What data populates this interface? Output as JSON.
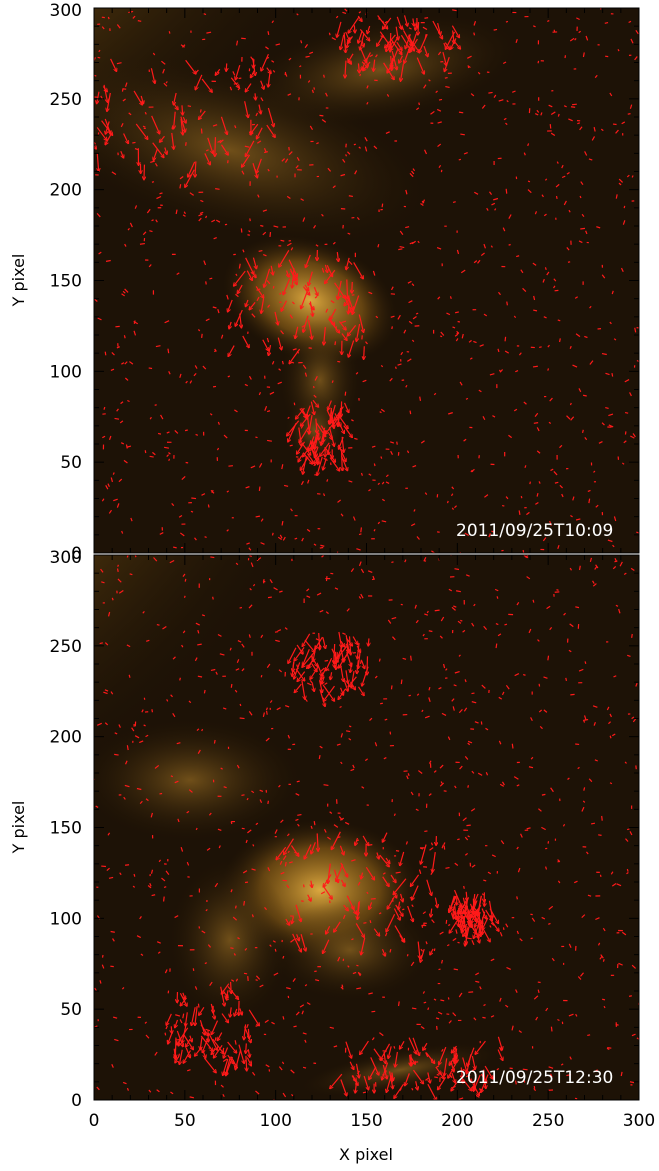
{
  "chart_data": [
    {
      "type": "image",
      "panel": "top",
      "timestamp": "2011/09/25T10:09",
      "xlabel": "",
      "ylabel": "Y pixel",
      "xlim": [
        0,
        300
      ],
      "ylim": [
        0,
        300
      ],
      "xticks": [],
      "yticks": [
        "0",
        "50",
        "100",
        "150",
        "200",
        "250",
        "300"
      ],
      "vector_color": "#ff1a1a",
      "background_colors": [
        "#1a0f04",
        "#c89a2c",
        "#ffffff"
      ]
    },
    {
      "type": "image",
      "panel": "bottom",
      "timestamp": "2011/09/25T12:30",
      "xlabel": "X pixel",
      "ylabel": "Y pixel",
      "xlim": [
        0,
        300
      ],
      "ylim": [
        0,
        300
      ],
      "xticks": [
        "0",
        "50",
        "100",
        "150",
        "200",
        "250",
        "300"
      ],
      "yticks": [
        "0",
        "50",
        "100",
        "150",
        "200",
        "250",
        "300"
      ],
      "vector_color": "#ff1a1a",
      "background_colors": [
        "#1a0f04",
        "#c89a2c",
        "#ffffff"
      ]
    }
  ]
}
